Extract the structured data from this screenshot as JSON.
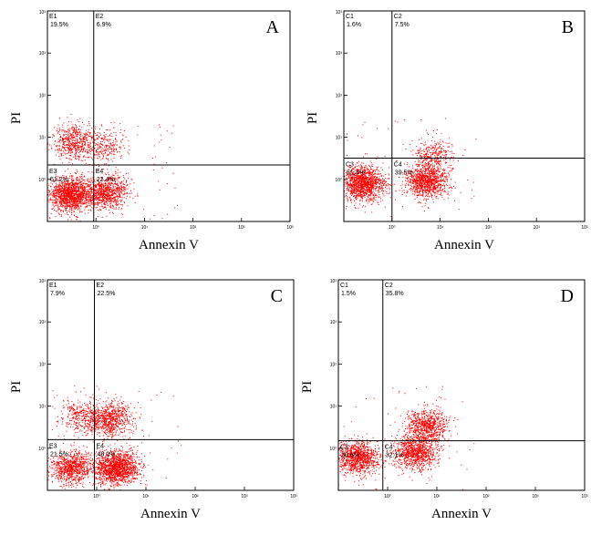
{
  "chart_data": [
    {
      "type": "scatter",
      "panel_label": "A",
      "xlabel": "Annexin V",
      "ylabel": "PI",
      "xscale": "log",
      "yscale": "log",
      "xlim": [
        0.1,
        10000
      ],
      "ylim": [
        0.1,
        10000
      ],
      "x_ticks": [
        "10⁰",
        "10¹",
        "10²",
        "10³"
      ],
      "y_ticks": [
        "10⁰",
        "10¹",
        "10²",
        "10³"
      ],
      "gate_x": 0.9,
      "gate_y": 2.2,
      "point_color": "#ff0000",
      "quadrants": [
        {
          "name": "E1",
          "position": "upper-left",
          "value": "19.5%"
        },
        {
          "name": "E2",
          "position": "upper-right",
          "value": "6.9%"
        },
        {
          "name": "E3",
          "position": "lower-left",
          "value": "51.2%"
        },
        {
          "name": "E4",
          "position": "lower-right",
          "value": "22.4%"
        }
      ],
      "clusters": [
        {
          "x": 0.3,
          "y": 0.45,
          "count": 1500
        },
        {
          "x": 0.35,
          "y": 8,
          "count": 600
        },
        {
          "x": 1.6,
          "y": 0.5,
          "count": 900
        },
        {
          "x": 1.5,
          "y": 6,
          "count": 250
        }
      ]
    },
    {
      "type": "scatter",
      "panel_label": "B",
      "xlabel": "Annexin V",
      "ylabel": "PI",
      "xscale": "log",
      "yscale": "log",
      "xlim": [
        0.1,
        10000
      ],
      "ylim": [
        0.1,
        10000
      ],
      "x_ticks": [
        "10⁰",
        "10¹",
        "10²",
        "10³"
      ],
      "y_ticks": [
        "10⁰",
        "10¹",
        "10²",
        "10³"
      ],
      "gate_x": 1.0,
      "gate_y": 3.2,
      "point_color": "#ff0000",
      "quadrants": [
        {
          "name": "C1",
          "position": "upper-left",
          "value": "1.6%"
        },
        {
          "name": "C2",
          "position": "upper-right",
          "value": "7.5%"
        },
        {
          "name": "C3",
          "position": "lower-left",
          "value": "51.4%"
        },
        {
          "name": "C4",
          "position": "lower-right",
          "value": "39.5%"
        }
      ],
      "clusters": [
        {
          "x": 0.25,
          "y": 0.8,
          "count": 1400
        },
        {
          "x": 5,
          "y": 0.9,
          "count": 1100
        },
        {
          "x": 7,
          "y": 3.5,
          "count": 350
        }
      ]
    },
    {
      "type": "scatter",
      "panel_label": "C",
      "xlabel": "Annexin V",
      "ylabel": "PI",
      "xscale": "log",
      "yscale": "log",
      "xlim": [
        0.1,
        10000
      ],
      "ylim": [
        0.1,
        10000
      ],
      "x_ticks": [
        "10⁰",
        "10¹",
        "10²",
        "10³"
      ],
      "y_ticks": [
        "10⁰",
        "10¹",
        "10²",
        "10³"
      ],
      "gate_x": 0.9,
      "gate_y": 1.6,
      "point_color": "#ff0000",
      "quadrants": [
        {
          "name": "E1",
          "position": "upper-left",
          "value": "7.9%"
        },
        {
          "name": "E2",
          "position": "upper-right",
          "value": "22.5%"
        },
        {
          "name": "E3",
          "position": "lower-left",
          "value": "21.5%"
        },
        {
          "name": "E4",
          "position": "lower-right",
          "value": "48.0%"
        }
      ],
      "clusters": [
        {
          "x": 0.3,
          "y": 0.35,
          "count": 900
        },
        {
          "x": 2.5,
          "y": 0.35,
          "count": 1600
        },
        {
          "x": 0.5,
          "y": 6,
          "count": 350
        },
        {
          "x": 1.8,
          "y": 5,
          "count": 800
        }
      ]
    },
    {
      "type": "scatter",
      "panel_label": "D",
      "xlabel": "Annexin V",
      "ylabel": "PI",
      "xscale": "log",
      "yscale": "log",
      "xlim": [
        0.1,
        10000
      ],
      "ylim": [
        0.1,
        10000
      ],
      "x_ticks": [
        "10⁰",
        "10¹",
        "10²",
        "10³"
      ],
      "y_ticks": [
        "10⁰",
        "10¹",
        "10²",
        "10³"
      ],
      "gate_x": 0.8,
      "gate_y": 1.5,
      "point_color": "#ff0000",
      "quadrants": [
        {
          "name": "C1",
          "position": "upper-left",
          "value": "1.5%"
        },
        {
          "name": "C2",
          "position": "upper-right",
          "value": "35.8%"
        },
        {
          "name": "C3",
          "position": "lower-left",
          "value": "30.6%"
        },
        {
          "name": "C4",
          "position": "lower-right",
          "value": "32.1%"
        }
      ],
      "clusters": [
        {
          "x": 0.25,
          "y": 0.6,
          "count": 1100
        },
        {
          "x": 3.5,
          "y": 0.8,
          "count": 1000
        },
        {
          "x": 6,
          "y": 3.5,
          "count": 800
        }
      ]
    }
  ]
}
